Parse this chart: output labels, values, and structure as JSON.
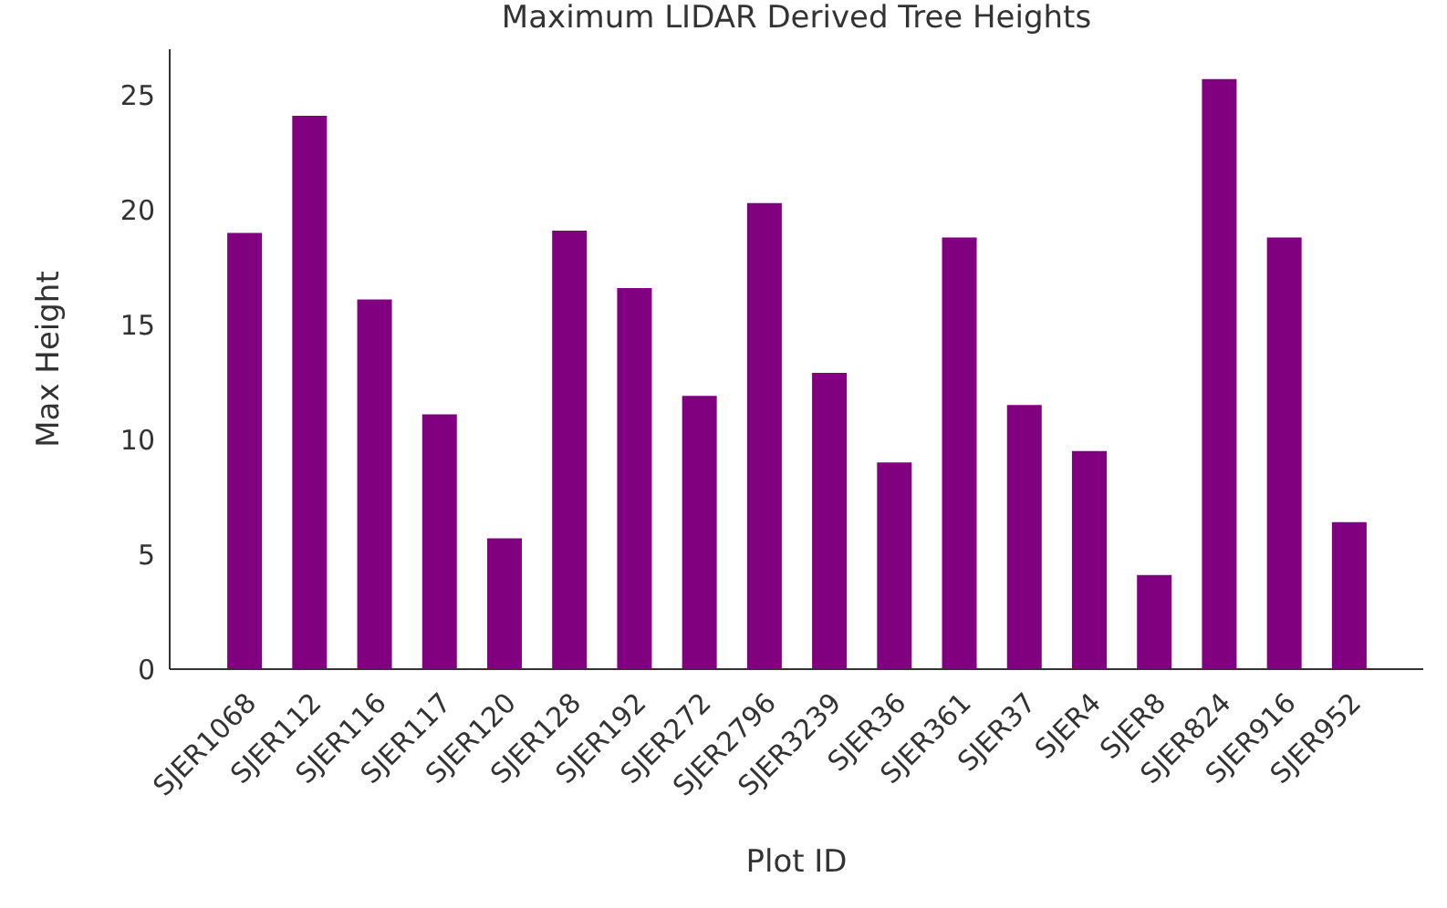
{
  "chart_data": {
    "type": "bar",
    "title": "Maximum LIDAR Derived Tree Heights",
    "xlabel": "Plot ID",
    "ylabel": "Max Height",
    "categories": [
      "SJER1068",
      "SJER112",
      "SJER116",
      "SJER117",
      "SJER120",
      "SJER128",
      "SJER192",
      "SJER272",
      "SJER2796",
      "SJER3239",
      "SJER36",
      "SJER361",
      "SJER37",
      "SJER4",
      "SJER8",
      "SJER824",
      "SJER916",
      "SJER952"
    ],
    "values": [
      19.0,
      24.1,
      16.1,
      11.1,
      5.7,
      19.1,
      16.6,
      11.9,
      20.3,
      12.9,
      9.0,
      18.8,
      11.5,
      9.5,
      4.1,
      25.7,
      18.8,
      6.4
    ],
    "color": "#800080",
    "ylim": [
      0,
      27
    ],
    "yticks": [
      0,
      5,
      10,
      15,
      20,
      25
    ],
    "grid": false,
    "legend": false
  }
}
